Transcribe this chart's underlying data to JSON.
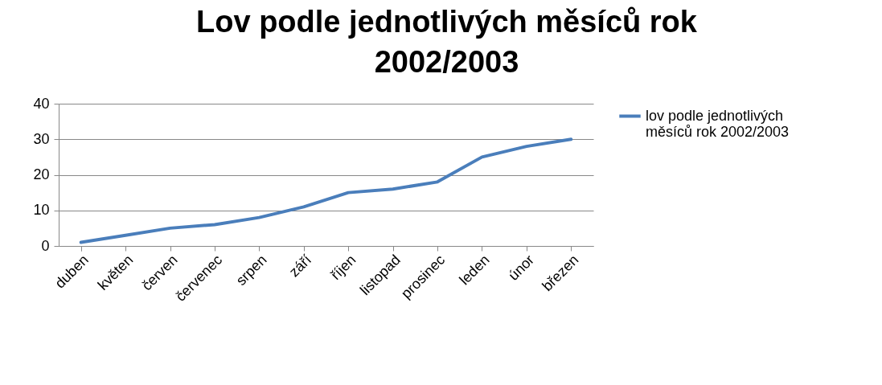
{
  "chart_data": {
    "type": "line",
    "title": "Lov podle jednotlivých měsíců rok 2002/2003",
    "categories": [
      "duben",
      "květen",
      "červen",
      "červenec",
      "srpen",
      "září",
      "říjen",
      "listopad",
      "prosinec",
      "leden",
      "únor",
      "březen"
    ],
    "series": [
      {
        "name": "lov podle jednotlivých měsíců rok 2002/2003",
        "color": "#4a7ebb",
        "values": [
          1,
          3,
          5,
          6,
          8,
          11,
          15,
          16,
          18,
          25,
          28,
          30
        ]
      }
    ],
    "ylim": [
      0,
      40
    ],
    "yticks": [
      0,
      10,
      20,
      30,
      40
    ],
    "grid": "y",
    "legend": "right",
    "marker": "none"
  }
}
